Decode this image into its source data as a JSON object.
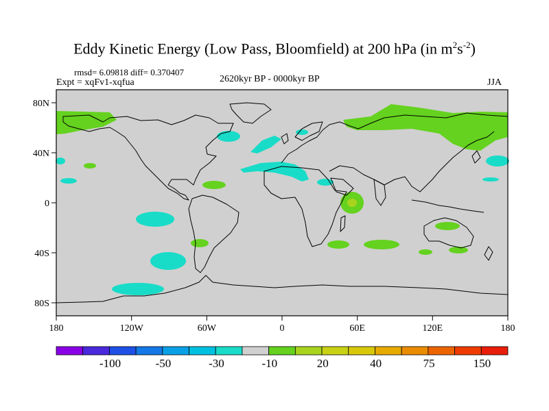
{
  "title": {
    "main": "Eddy Kinetic Energy (Low Pass, Bloomfield) at 200 hPa (in m",
    "sup1": "2",
    "mid": "s",
    "sup2": "-2",
    "end": ")"
  },
  "stats": "rmsd= 6.09818 diff= 0.370407",
  "expt": "Expt = xqFv1-xqfua",
  "period": "2620kyr BP - 0000kyr BP",
  "season": "JJA",
  "colors": {
    "land_no_change": "#d0d0d0",
    "neg_small": "#18dcc8",
    "pos_small": "#64d21e",
    "pos_mid": "#a8d41e",
    "coast": "#000000"
  },
  "map_axes": {
    "lon_ticks": [
      "180",
      "120W",
      "60W",
      "0",
      "60E",
      "120E",
      "180"
    ],
    "lat_ticks": [
      "80N",
      "40N",
      "0",
      "40S",
      "80S"
    ]
  },
  "colorbar": {
    "colors": [
      "#8a00e6",
      "#4a28dc",
      "#1e50e6",
      "#1478e6",
      "#0aa0e6",
      "#00c0e0",
      "#18dcc8",
      "#d0d0d0",
      "#64d21e",
      "#a8d41e",
      "#c8d214",
      "#d8c80a",
      "#e6aa00",
      "#ea8c00",
      "#ec6400",
      "#ee3c00",
      "#e81e0a"
    ],
    "labels": [
      "-100",
      "-50",
      "-30",
      "-10",
      "20",
      "40",
      "75",
      "150"
    ]
  }
}
